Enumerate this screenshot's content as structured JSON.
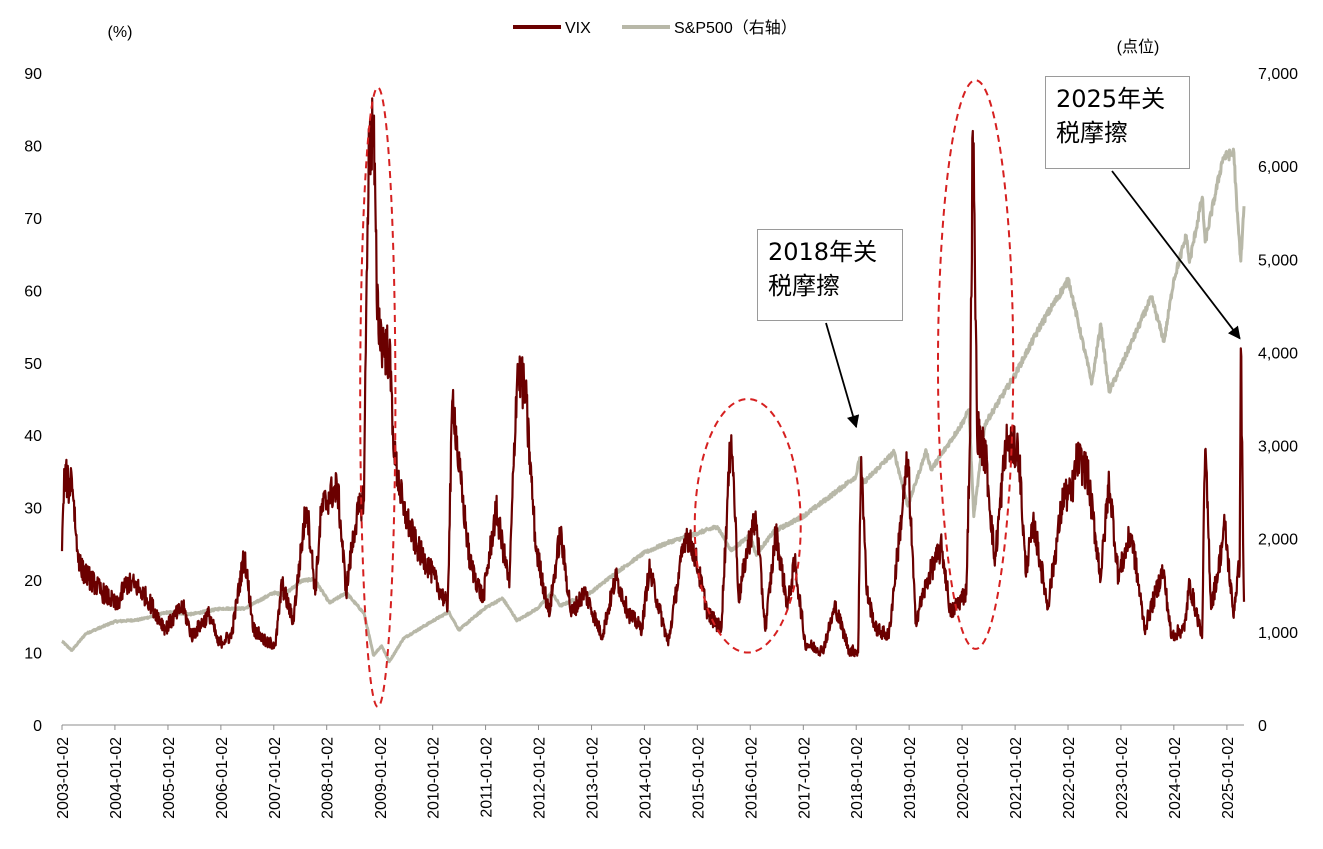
{
  "chart_data": {
    "type": "line",
    "left_axis_unit": "(%)",
    "right_axis_unit": "(点位)",
    "left_ylim": [
      0,
      90
    ],
    "left_ticks": [
      "0",
      "10",
      "20",
      "30",
      "40",
      "50",
      "60",
      "70",
      "80",
      "90"
    ],
    "right_ylim": [
      0,
      7000
    ],
    "right_ticks": [
      "0",
      "1,000",
      "2,000",
      "3,000",
      "4,000",
      "5,000",
      "6,000",
      "7,000"
    ],
    "x_range": [
      "2003-01-02",
      "2025-04-30"
    ],
    "x_ticks": [
      "2003-01-02",
      "2004-01-02",
      "2005-01-02",
      "2006-01-02",
      "2007-01-02",
      "2008-01-02",
      "2009-01-02",
      "2010-01-02",
      "2011-01-02",
      "2012-01-02",
      "2013-01-02",
      "2014-01-02",
      "2015-01-02",
      "2016-01-02",
      "2017-01-02",
      "2018-01-02",
      "2019-01-02",
      "2020-01-02",
      "2021-01-02",
      "2022-01-02",
      "2023-01-02",
      "2024-01-02",
      "2025-01-02"
    ],
    "legend_position": "top-center",
    "series": [
      {
        "name": "VIX",
        "axis": "left",
        "color": "#6b0000",
        "points": [
          [
            "2003-01-02",
            24
          ],
          [
            "2003-01-20",
            34
          ],
          [
            "2003-02-20",
            32
          ],
          [
            "2003-03-11",
            34
          ],
          [
            "2003-04-15",
            24
          ],
          [
            "2003-05-15",
            21
          ],
          [
            "2003-07-01",
            20
          ],
          [
            "2003-10-01",
            18
          ],
          [
            "2003-12-01",
            17
          ],
          [
            "2004-01-15",
            16
          ],
          [
            "2004-03-15",
            19
          ],
          [
            "2004-05-15",
            19
          ],
          [
            "2004-08-15",
            17
          ],
          [
            "2004-10-15",
            15
          ],
          [
            "2004-12-15",
            13
          ],
          [
            "2005-04-15",
            16
          ],
          [
            "2005-06-15",
            12
          ],
          [
            "2005-10-15",
            15
          ],
          [
            "2005-12-15",
            11
          ],
          [
            "2006-03-15",
            12
          ],
          [
            "2006-06-13",
            23
          ],
          [
            "2006-08-15",
            13
          ],
          [
            "2006-11-15",
            11
          ],
          [
            "2007-01-15",
            11
          ],
          [
            "2007-02-27",
            19
          ],
          [
            "2007-05-15",
            14
          ],
          [
            "2007-08-16",
            30
          ],
          [
            "2007-10-15",
            18
          ],
          [
            "2007-11-26",
            29
          ],
          [
            "2008-01-22",
            31
          ],
          [
            "2008-03-17",
            32
          ],
          [
            "2008-05-15",
            18
          ],
          [
            "2008-07-15",
            27
          ],
          [
            "2008-09-15",
            31
          ],
          [
            "2008-10-10",
            70
          ],
          [
            "2008-10-24",
            79
          ],
          [
            "2008-11-20",
            81
          ],
          [
            "2008-12-15",
            56
          ],
          [
            "2009-01-15",
            52
          ],
          [
            "2009-03-09",
            50
          ],
          [
            "2009-04-15",
            36
          ],
          [
            "2009-06-15",
            29
          ],
          [
            "2009-09-15",
            24
          ],
          [
            "2009-12-15",
            21
          ],
          [
            "2010-04-15",
            16
          ],
          [
            "2010-05-20",
            45
          ],
          [
            "2010-07-01",
            35
          ],
          [
            "2010-09-15",
            22
          ],
          [
            "2010-12-15",
            17
          ],
          [
            "2011-03-16",
            29
          ],
          [
            "2011-06-15",
            19
          ],
          [
            "2011-08-08",
            48
          ],
          [
            "2011-10-03",
            45
          ],
          [
            "2011-12-15",
            24
          ],
          [
            "2012-03-15",
            15
          ],
          [
            "2012-06-01",
            26
          ],
          [
            "2012-08-15",
            15
          ],
          [
            "2012-11-15",
            18
          ],
          [
            "2013-03-15",
            12
          ],
          [
            "2013-06-20",
            20
          ],
          [
            "2013-09-15",
            15
          ],
          [
            "2013-12-15",
            13
          ],
          [
            "2014-02-03",
            21
          ],
          [
            "2014-06-15",
            11
          ],
          [
            "2014-08-01",
            17
          ],
          [
            "2014-10-15",
            26
          ],
          [
            "2014-12-16",
            23
          ],
          [
            "2015-03-15",
            15
          ],
          [
            "2015-06-15",
            13
          ],
          [
            "2015-08-24",
            40
          ],
          [
            "2015-10-15",
            17
          ],
          [
            "2015-12-14",
            24
          ],
          [
            "2016-02-11",
            28
          ],
          [
            "2016-04-15",
            13
          ],
          [
            "2016-06-27",
            26
          ],
          [
            "2016-09-15",
            16
          ],
          [
            "2016-11-04",
            22
          ],
          [
            "2017-01-15",
            11
          ],
          [
            "2017-05-15",
            10
          ],
          [
            "2017-08-11",
            16
          ],
          [
            "2017-11-15",
            10
          ],
          [
            "2018-01-15",
            10
          ],
          [
            "2018-02-05",
            37
          ],
          [
            "2018-03-15",
            18
          ],
          [
            "2018-05-15",
            13
          ],
          [
            "2018-08-15",
            12
          ],
          [
            "2018-10-24",
            25
          ],
          [
            "2018-12-24",
            36
          ],
          [
            "2019-02-15",
            14
          ],
          [
            "2019-05-15",
            20
          ],
          [
            "2019-08-15",
            24
          ],
          [
            "2019-10-15",
            15
          ],
          [
            "2020-01-31",
            18
          ],
          [
            "2020-02-27",
            40
          ],
          [
            "2020-03-16",
            82
          ],
          [
            "2020-04-15",
            40
          ],
          [
            "2020-06-15",
            36
          ],
          [
            "2020-08-15",
            22
          ],
          [
            "2020-10-30",
            38
          ],
          [
            "2021-01-27",
            37
          ],
          [
            "2021-03-15",
            21
          ],
          [
            "2021-05-12",
            27
          ],
          [
            "2021-08-15",
            16
          ],
          [
            "2021-12-01",
            31
          ],
          [
            "2022-01-24",
            31
          ],
          [
            "2022-03-07",
            36
          ],
          [
            "2022-05-15",
            34
          ],
          [
            "2022-08-15",
            20
          ],
          [
            "2022-10-13",
            33
          ],
          [
            "2022-12-15",
            20
          ],
          [
            "2023-03-13",
            26
          ],
          [
            "2023-06-15",
            13
          ],
          [
            "2023-10-20",
            21
          ],
          [
            "2023-12-15",
            12
          ],
          [
            "2024-03-15",
            13
          ],
          [
            "2024-04-19",
            19
          ],
          [
            "2024-07-15",
            12
          ],
          [
            "2024-08-05",
            38
          ],
          [
            "2024-09-15",
            16
          ],
          [
            "2024-11-05",
            21
          ],
          [
            "2024-12-18",
            27
          ],
          [
            "2025-02-15",
            15
          ],
          [
            "2025-03-31",
            22
          ],
          [
            "2025-04-08",
            52
          ],
          [
            "2025-04-24",
            25
          ],
          [
            "2025-04-30",
            17
          ]
        ]
      },
      {
        "name": "S&P500（右轴）",
        "axis": "right",
        "color": "#b8b8a8",
        "points": [
          [
            "2003-01-02",
            900
          ],
          [
            "2003-03-11",
            800
          ],
          [
            "2003-06-15",
            980
          ],
          [
            "2003-12-31",
            1110
          ],
          [
            "2004-06-15",
            1130
          ],
          [
            "2004-12-31",
            1210
          ],
          [
            "2005-06-15",
            1190
          ],
          [
            "2005-12-31",
            1250
          ],
          [
            "2006-06-15",
            1250
          ],
          [
            "2006-12-31",
            1420
          ],
          [
            "2007-03-15",
            1400
          ],
          [
            "2007-07-15",
            1550
          ],
          [
            "2007-10-09",
            1565
          ],
          [
            "2008-01-22",
            1310
          ],
          [
            "2008-05-15",
            1420
          ],
          [
            "2008-09-15",
            1200
          ],
          [
            "2008-11-20",
            750
          ],
          [
            "2009-01-15",
            850
          ],
          [
            "2009-03-09",
            680
          ],
          [
            "2009-06-15",
            930
          ],
          [
            "2009-12-31",
            1115
          ],
          [
            "2010-04-23",
            1215
          ],
          [
            "2010-07-02",
            1020
          ],
          [
            "2010-12-31",
            1258
          ],
          [
            "2011-04-29",
            1360
          ],
          [
            "2011-08-08",
            1120
          ],
          [
            "2011-12-31",
            1258
          ],
          [
            "2012-04-02",
            1420
          ],
          [
            "2012-06-01",
            1280
          ],
          [
            "2012-12-31",
            1426
          ],
          [
            "2013-06-15",
            1630
          ],
          [
            "2013-12-31",
            1848
          ],
          [
            "2014-06-15",
            1960
          ],
          [
            "2014-12-31",
            2058
          ],
          [
            "2015-05-20",
            2130
          ],
          [
            "2015-08-24",
            1870
          ],
          [
            "2015-12-31",
            2040
          ],
          [
            "2016-02-11",
            1830
          ],
          [
            "2016-06-15",
            2080
          ],
          [
            "2016-12-31",
            2240
          ],
          [
            "2017-06-15",
            2430
          ],
          [
            "2017-12-31",
            2670
          ],
          [
            "2018-01-26",
            2870
          ],
          [
            "2018-02-08",
            2580
          ],
          [
            "2018-09-20",
            2930
          ],
          [
            "2018-12-24",
            2350
          ],
          [
            "2019-04-30",
            2945
          ],
          [
            "2019-06-03",
            2740
          ],
          [
            "2019-12-31",
            3230
          ],
          [
            "2020-02-19",
            3386
          ],
          [
            "2020-03-23",
            2237
          ],
          [
            "2020-06-08",
            3230
          ],
          [
            "2020-12-31",
            3756
          ],
          [
            "2021-06-30",
            4300
          ],
          [
            "2021-12-31",
            4766
          ],
          [
            "2022-01-03",
            4796
          ],
          [
            "2022-06-16",
            3670
          ],
          [
            "2022-08-16",
            4305
          ],
          [
            "2022-10-12",
            3577
          ],
          [
            "2022-12-31",
            3840
          ],
          [
            "2023-07-31",
            4590
          ],
          [
            "2023-10-27",
            4117
          ],
          [
            "2023-12-31",
            4770
          ],
          [
            "2024-03-28",
            5254
          ],
          [
            "2024-04-19",
            4967
          ],
          [
            "2024-07-16",
            5667
          ],
          [
            "2024-08-05",
            5186
          ],
          [
            "2024-12-06",
            6090
          ],
          [
            "2025-02-19",
            6144
          ],
          [
            "2025-03-13",
            5520
          ],
          [
            "2025-04-08",
            4980
          ],
          [
            "2025-04-30",
            5570
          ]
        ]
      }
    ],
    "annotations": [
      {
        "text": "2018年关\n税摩擦",
        "arrow_to": [
          "2018-01-02",
          3200
        ],
        "arrow_axis": "right"
      },
      {
        "text": "2025年关\n税摩擦",
        "arrow_to": [
          "2025-04-01",
          4150
        ],
        "arrow_axis": "right"
      }
    ],
    "highlight_ellipses": [
      {
        "center": [
          "2008-12-20",
          45
        ],
        "x_span": [
          "2008-08-20",
          "2009-04-20"
        ],
        "y_span": [
          2.5,
          88
        ]
      },
      {
        "center": [
          "2015-12-20",
          25
        ],
        "x_span": [
          "2014-12-15",
          "2016-12-15"
        ],
        "y_span": [
          10,
          45
        ]
      },
      {
        "center": [
          "2020-03-20",
          45
        ],
        "x_span": [
          "2019-07-20",
          "2020-12-20"
        ],
        "y_span": [
          10.5,
          89
        ]
      }
    ]
  }
}
